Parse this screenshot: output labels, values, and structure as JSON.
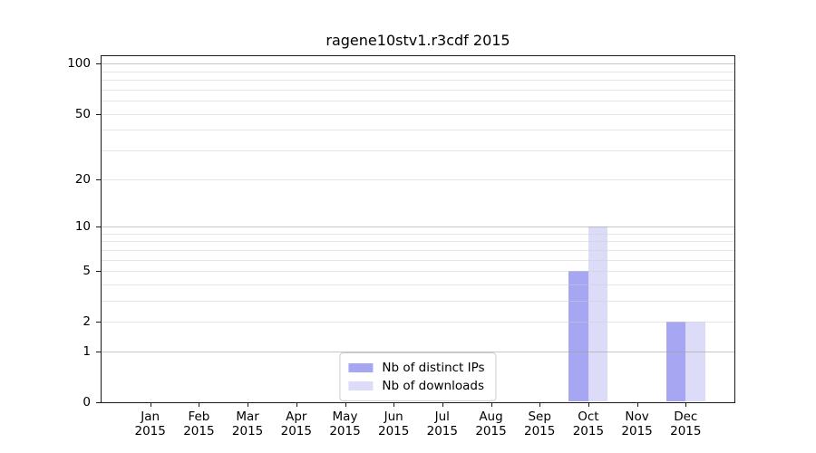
{
  "chart_data": {
    "type": "bar",
    "title": "ragene10stv1.r3cdf 2015",
    "categories": [
      "Jan",
      "Feb",
      "Mar",
      "Apr",
      "May",
      "Jun",
      "Jul",
      "Aug",
      "Sep",
      "Oct",
      "Nov",
      "Dec"
    ],
    "x_sub_label": "2015",
    "series": [
      {
        "name": "Nb of distinct IPs",
        "color": "#a6a6f2",
        "values": [
          0,
          0,
          0,
          0,
          0,
          0,
          0,
          0,
          0,
          5,
          0,
          2
        ]
      },
      {
        "name": "Nb of downloads",
        "color": "#dcdcf9",
        "values": [
          0,
          0,
          0,
          0,
          0,
          0,
          0,
          0,
          0,
          10,
          0,
          2
        ]
      }
    ],
    "y_scale": "log1p",
    "ylim": [
      0,
      111
    ],
    "y_ticks": [
      0,
      1,
      2,
      5,
      10,
      20,
      50,
      100
    ],
    "grid_major": [
      1,
      10,
      100
    ],
    "grid_minor": [
      2,
      3,
      4,
      5,
      6,
      7,
      8,
      9,
      20,
      30,
      40,
      50,
      60,
      70,
      80,
      90
    ],
    "grid_major_color": "rgba(160,160,160,0.60)",
    "grid_minor_color": "rgba(205,205,205,0.50)",
    "bar_width_frac": 0.4,
    "legend_position": "lower center",
    "axis_color": "#000000",
    "background": "#ffffff"
  }
}
